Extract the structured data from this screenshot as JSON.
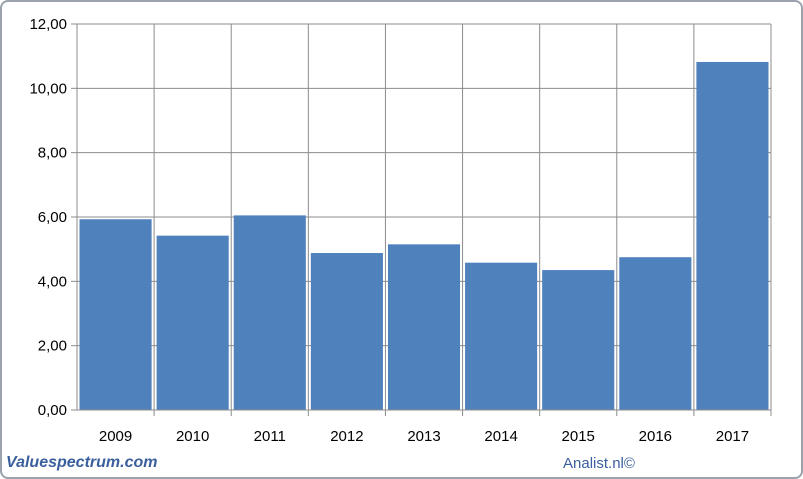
{
  "chart_data": {
    "type": "bar",
    "categories": [
      "2009",
      "2010",
      "2011",
      "2012",
      "2013",
      "2014",
      "2015",
      "2016",
      "2017"
    ],
    "values": [
      5.93,
      5.42,
      6.05,
      4.88,
      5.15,
      4.58,
      4.35,
      4.75,
      10.82
    ],
    "title": "",
    "xlabel": "",
    "ylabel": "",
    "ylim": [
      0,
      12
    ],
    "yticks": [
      "0,00",
      "2,00",
      "4,00",
      "6,00",
      "8,00",
      "10,00",
      "12,00"
    ],
    "grid": true,
    "bar_color": "#4f81bd"
  },
  "footer": {
    "left_brand": "Valuespectrum.com",
    "right_credit": "Analist.nl©"
  }
}
